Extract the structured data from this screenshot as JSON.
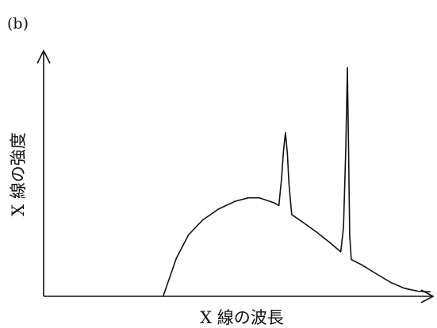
{
  "chart_data": {
    "type": "line",
    "panel_label": "(b)",
    "xlabel": "X 線の波長",
    "ylabel": "X 線の強度",
    "xlim": [
      0,
      100
    ],
    "ylim": [
      0,
      100
    ],
    "grid": false,
    "legend": "none",
    "series": [
      {
        "color": "#111111",
        "points": [
          [
            30.7,
            0.0
          ],
          [
            34.1,
            15.5
          ],
          [
            37.2,
            25.0
          ],
          [
            40.8,
            31.0
          ],
          [
            44.9,
            35.5
          ],
          [
            49.2,
            38.7
          ],
          [
            52.6,
            40.1
          ],
          [
            55.4,
            40.1
          ],
          [
            59.3,
            38.0
          ],
          [
            60.4,
            36.9
          ],
          [
            61.1,
            48.0
          ],
          [
            61.6,
            59.4
          ],
          [
            62.1,
            66.6
          ],
          [
            62.6,
            58.0
          ],
          [
            63.0,
            46.0
          ],
          [
            63.7,
            33.3
          ],
          [
            66.7,
            30.0
          ],
          [
            70.2,
            26.0
          ],
          [
            73.7,
            21.6
          ],
          [
            76.3,
            18.1
          ],
          [
            77.0,
            28.0
          ],
          [
            77.6,
            60.0
          ],
          [
            78.0,
            93.1
          ],
          [
            78.3,
            60.0
          ],
          [
            78.6,
            25.0
          ],
          [
            79.0,
            15.0
          ],
          [
            81.7,
            12.8
          ],
          [
            85.9,
            8.7
          ],
          [
            89.3,
            5.5
          ],
          [
            92.6,
            3.3
          ],
          [
            96.0,
            2.1
          ],
          [
            99.2,
            1.8
          ]
        ]
      }
    ]
  }
}
